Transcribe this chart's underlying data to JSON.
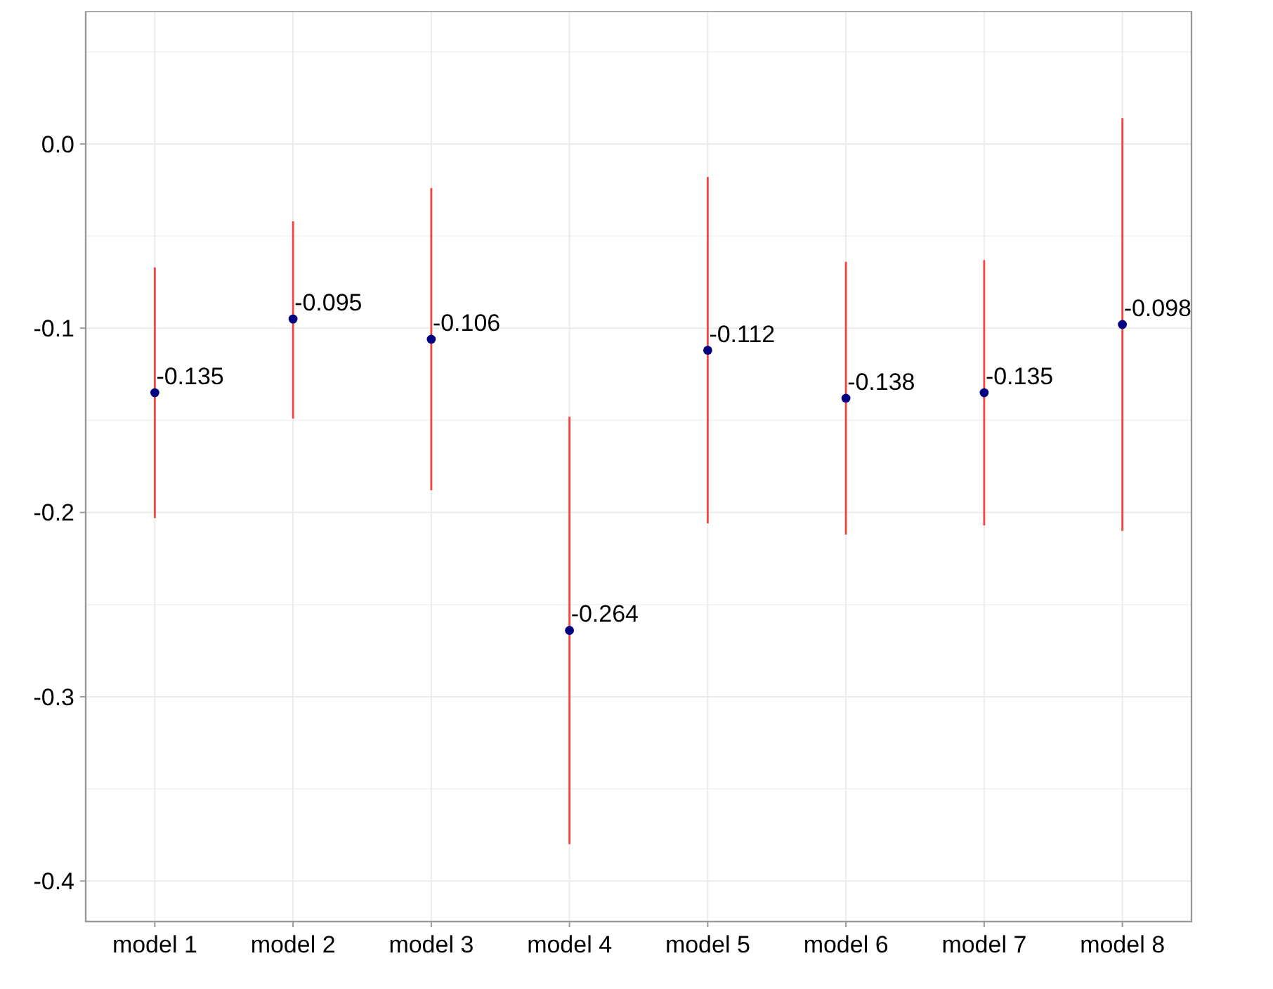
{
  "chart_data": {
    "type": "scatter",
    "categories": [
      "model 1",
      "model 2",
      "model 3",
      "model 4",
      "model 5",
      "model 6",
      "model 7",
      "model 8"
    ],
    "series": [
      {
        "color": "#000080",
        "values": [
          -0.135,
          -0.095,
          -0.106,
          -0.264,
          -0.112,
          -0.138,
          -0.135,
          -0.098
        ],
        "errors": [
          [
            -0.203,
            -0.067
          ],
          [
            -0.149,
            -0.042
          ],
          [
            -0.188,
            -0.024
          ],
          [
            -0.38,
            -0.148
          ],
          [
            -0.206,
            -0.018
          ],
          [
            -0.212,
            -0.064
          ],
          [
            -0.207,
            -0.063
          ],
          [
            -0.21,
            0.014
          ]
        ]
      }
    ],
    "data_labels": true,
    "ylim": [
      -0.422,
      0.072
    ],
    "yticks": [
      {
        "value": -0.4,
        "label": "-0.4"
      },
      {
        "value": -0.3,
        "label": "-0.3"
      },
      {
        "value": -0.2,
        "label": "-0.2"
      },
      {
        "value": -0.1,
        "label": "-0.1"
      },
      {
        "value": 0,
        "label": "0.0"
      }
    ],
    "grid": true,
    "marker": "circle"
  }
}
